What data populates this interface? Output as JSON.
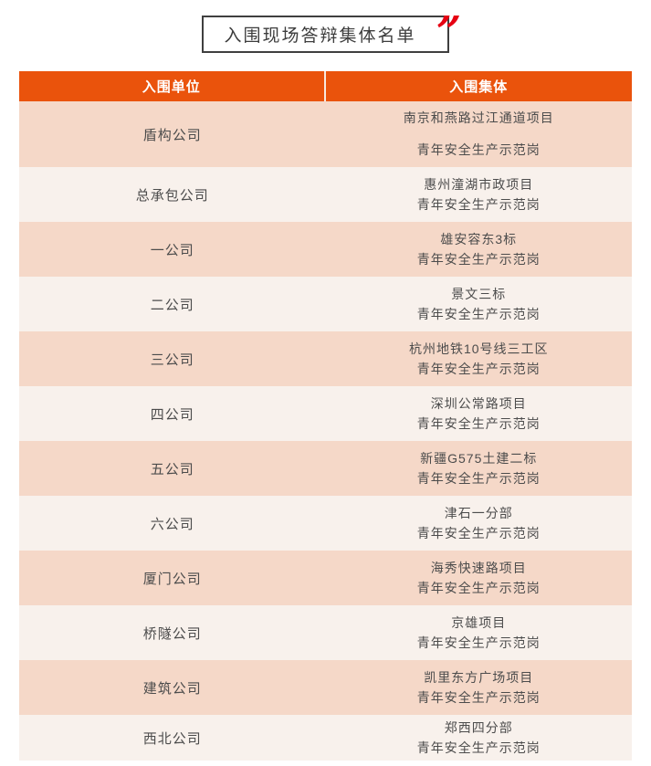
{
  "title": {
    "text": "入围现场答辩集体名单",
    "quote_icon": "”",
    "quote_icon_name": "double-quote-icon",
    "accent_color": "#e60012",
    "border_color": "#3f3f3f"
  },
  "table": {
    "header_bg": "#ea530c",
    "header_text_color": "#ffffff",
    "row_alt_colors": [
      "#f5d8c8",
      "#f8f1ec"
    ],
    "headers": [
      {
        "label": "入围单位"
      },
      {
        "label": "入围集体"
      }
    ],
    "rows": [
      {
        "unit": "盾构公司",
        "group_lines": [
          "南京和燕路过江通道项目",
          "青年安全生产示范岗"
        ]
      },
      {
        "unit": "总承包公司",
        "group_lines": [
          "惠州潼湖市政项目",
          "青年安全生产示范岗"
        ]
      },
      {
        "unit": "一公司",
        "group_lines": [
          "雄安容东3标",
          "青年安全生产示范岗"
        ]
      },
      {
        "unit": "二公司",
        "group_lines": [
          "景文三标",
          "青年安全生产示范岗"
        ]
      },
      {
        "unit": "三公司",
        "group_lines": [
          "杭州地铁10号线三工区",
          "青年安全生产示范岗"
        ]
      },
      {
        "unit": "四公司",
        "group_lines": [
          "深圳公常路项目",
          "青年安全生产示范岗"
        ]
      },
      {
        "unit": "五公司",
        "group_lines": [
          "新疆G575土建二标",
          "青年安全生产示范岗"
        ]
      },
      {
        "unit": "六公司",
        "group_lines": [
          "津石一分部",
          "青年安全生产示范岗"
        ]
      },
      {
        "unit": "厦门公司",
        "group_lines": [
          "海秀快速路项目",
          "青年安全生产示范岗"
        ]
      },
      {
        "unit": "桥隧公司",
        "group_lines": [
          "京雄项目",
          "青年安全生产示范岗"
        ]
      },
      {
        "unit": "建筑公司",
        "group_lines": [
          "凯里东方广场项目",
          "青年安全生产示范岗"
        ]
      },
      {
        "unit": "西北公司",
        "group_lines": [
          "郑西四分部",
          "青年安全生产示范岗"
        ]
      }
    ]
  }
}
